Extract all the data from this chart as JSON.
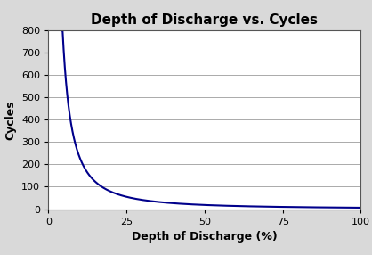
{
  "title": "Depth of Discharge vs. Cycles",
  "xlabel": "Depth of Discharge (%)",
  "ylabel": "Cycles",
  "xlim": [
    0,
    100
  ],
  "ylim": [
    0,
    800
  ],
  "xticks": [
    0,
    25,
    50,
    75,
    100
  ],
  "yticks": [
    0,
    100,
    200,
    300,
    400,
    500,
    600,
    700,
    800
  ],
  "line_color": "#00008B",
  "line_width": 1.5,
  "background_color": "#d9d9d9",
  "plot_background_color": "#ffffff",
  "grid_color": "#aaaaaa",
  "title_fontsize": 11,
  "label_fontsize": 9,
  "tick_fontsize": 8,
  "curve_A": 8624,
  "curve_b": 1.57,
  "x_start": 4.5,
  "x_end": 100
}
